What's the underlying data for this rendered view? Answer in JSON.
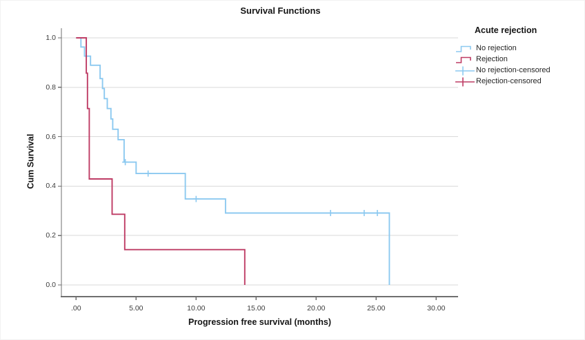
{
  "title": "Survival Functions",
  "chart_data": {
    "type": "line",
    "subtype": "kaplan-meier-step",
    "title": "Survival Functions",
    "xlabel": "Progression free survival (months)",
    "ylabel": "Cum Survival",
    "grid": "horizontal",
    "xlim": [
      -1.2,
      31.8
    ],
    "ylim": [
      0.0,
      1.04
    ],
    "x_ticks": {
      "values": [
        0,
        5,
        10,
        15,
        20,
        25,
        30
      ],
      "labels": [
        ".00",
        "5.00",
        "10.00",
        "15.00",
        "20.00",
        "25.00",
        "30.00"
      ]
    },
    "y_ticks": {
      "values": [
        1.0,
        0.8,
        0.6,
        0.4,
        0.2,
        0.0
      ],
      "labels": [
        "1.0",
        "0.8",
        "0.6",
        "0.4",
        "0.2",
        "0.0"
      ]
    },
    "legend": {
      "title": "Acute rejection",
      "position": "right",
      "entries": [
        {
          "label": "No rejection",
          "type": "step-line",
          "color": "#8CC9F0"
        },
        {
          "label": "Rejection",
          "type": "step-line",
          "color": "#BE3B64"
        },
        {
          "label": "No rejection-censored",
          "type": "plus-marker",
          "color": "#8CC9F0"
        },
        {
          "label": "Rejection-censored",
          "type": "plus-marker",
          "color": "#BE3B64"
        }
      ]
    },
    "series": [
      {
        "name": "No rejection",
        "color": "#8CC9F0",
        "steps": [
          [
            0,
            1.0
          ],
          [
            0.4,
            0.963
          ],
          [
            0.7,
            0.926
          ],
          [
            1.2,
            0.889
          ],
          [
            2.0,
            0.835
          ],
          [
            2.2,
            0.795
          ],
          [
            2.35,
            0.754
          ],
          [
            2.6,
            0.714
          ],
          [
            2.9,
            0.672
          ],
          [
            3.05,
            0.63
          ],
          [
            3.5,
            0.588
          ],
          [
            4.0,
            0.497
          ],
          [
            5.0,
            0.451
          ],
          [
            9.1,
            0.348
          ],
          [
            12.45,
            0.291
          ],
          [
            26.1,
            0.0
          ]
        ],
        "censored": [
          [
            4.1,
            0.497
          ],
          [
            6.0,
            0.451
          ],
          [
            10.0,
            0.348
          ],
          [
            21.2,
            0.291
          ],
          [
            24.0,
            0.291
          ],
          [
            25.1,
            0.291
          ]
        ]
      },
      {
        "name": "Rejection",
        "color": "#BE3B64",
        "steps": [
          [
            0,
            1.0
          ],
          [
            0.85,
            0.857
          ],
          [
            0.95,
            0.714
          ],
          [
            1.1,
            0.429
          ],
          [
            3.0,
            0.286
          ],
          [
            4.05,
            0.143
          ],
          [
            14.05,
            0.0
          ]
        ],
        "censored": []
      }
    ],
    "colors": {
      "grid": "#D9D9D9",
      "axis": "#6E6E6E",
      "background": "#FFFFFF"
    }
  }
}
